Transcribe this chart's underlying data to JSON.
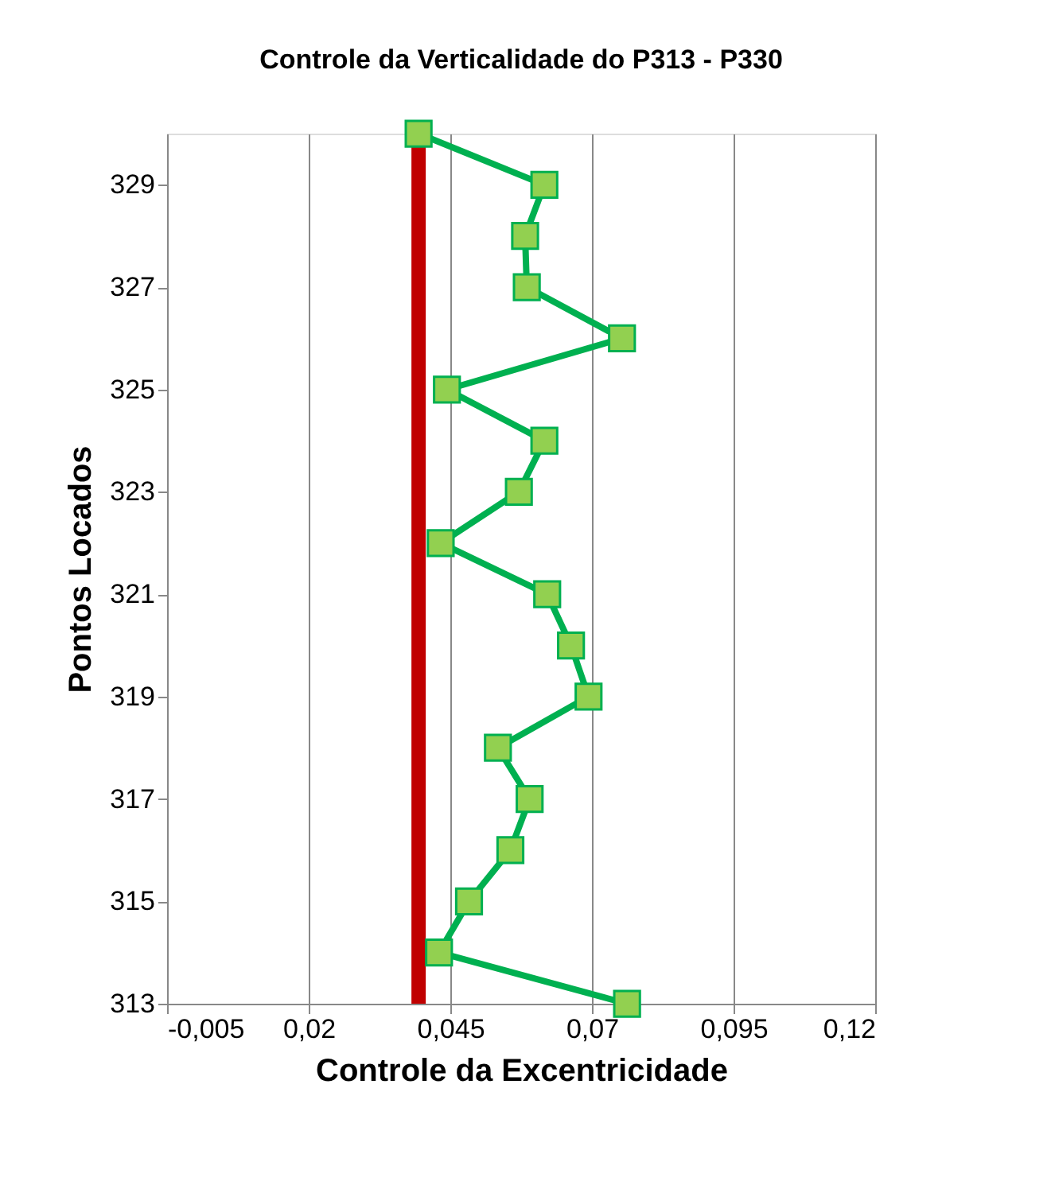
{
  "chart_data": {
    "type": "line",
    "title": "Controle da Verticalidade do P313 - P330",
    "xlabel": "Controle da Excentricidade",
    "ylabel": "Pontos Locados",
    "xlim": [
      -0.005,
      0.12
    ],
    "xticks": [
      {
        "value": -0.005,
        "label": "-0,005"
      },
      {
        "value": 0.02,
        "label": "0,02"
      },
      {
        "value": 0.045,
        "label": "0,045"
      },
      {
        "value": 0.07,
        "label": "0,07"
      },
      {
        "value": 0.095,
        "label": "0,095"
      },
      {
        "value": 0.12,
        "label": "0,12"
      }
    ],
    "ylim": [
      313,
      330
    ],
    "yticks": [
      313,
      315,
      317,
      319,
      321,
      323,
      325,
      327,
      329
    ],
    "grid": "x",
    "marker": "square",
    "line_style": "solid",
    "series": [
      {
        "color": "#00b050",
        "x": [
          0.0762,
          0.043,
          0.0483,
          0.0556,
          0.059,
          0.0534,
          0.0694,
          0.0663,
          0.0621,
          0.0433,
          0.0571,
          0.0616,
          0.0444,
          0.0753,
          0.0585,
          0.0582,
          0.0616,
          0.0394
        ],
        "values": [
          313,
          314,
          315,
          316,
          317,
          318,
          319,
          320,
          321,
          322,
          323,
          324,
          325,
          326,
          327,
          328,
          329,
          330
        ]
      }
    ],
    "ref_lines": [
      {
        "axis": "x",
        "value": 0.0394,
        "color": "#c00000",
        "line_style": "solid"
      }
    ]
  }
}
